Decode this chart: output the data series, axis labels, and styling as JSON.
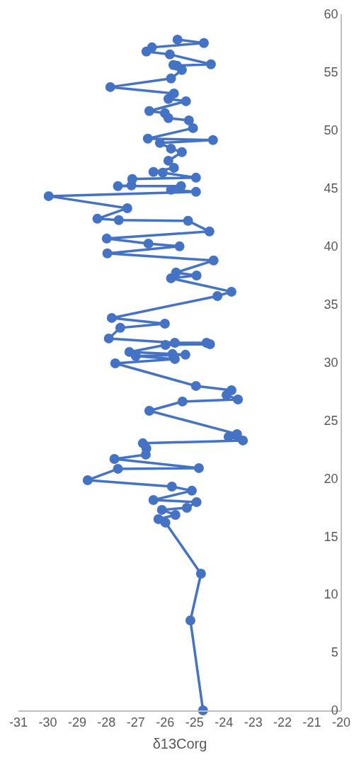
{
  "chart_data": {
    "type": "line",
    "xlabel": "δ13Corg",
    "color": "#4472c4",
    "marker": "circle",
    "line_style": "solid",
    "xlim": [
      -31,
      -20
    ],
    "xticks": [
      -31,
      -30,
      -29,
      -28,
      -27,
      -26,
      -25,
      -24,
      -23,
      -22,
      -21,
      -20
    ],
    "ylim": [
      0,
      60
    ],
    "yticks": [
      0,
      5,
      10,
      15,
      20,
      25,
      30,
      35,
      40,
      45,
      50,
      55,
      60
    ],
    "x": [
      -24.71,
      -25.14,
      -24.78,
      -25.99,
      -26.23,
      -25.65,
      -26.11,
      -25.26,
      -24.93,
      -26.4,
      -25.09,
      -25.77,
      -28.64,
      -27.61,
      -24.85,
      -27.73,
      -26.66,
      -26.64,
      -26.76,
      -23.35,
      -23.84,
      -23.55,
      -26.54,
      -25.41,
      -23.52,
      -23.91,
      -23.74,
      -24.95,
      -27.7,
      -25.67,
      -27.0,
      -25.31,
      -25.75,
      -27.22,
      -25.99,
      -24.47,
      -24.59,
      -25.67,
      -27.92,
      -27.53,
      -26.01,
      -27.82,
      -24.22,
      -23.74,
      -25.8,
      -24.93,
      -25.63,
      -24.35,
      -27.97,
      -25.51,
      -26.57,
      -27.99,
      -24.49,
      -25.22,
      -27.58,
      -28.31,
      -27.29,
      -29.97,
      -24.95,
      -25.8,
      -25.46,
      -27.61,
      -27.15,
      -27.12,
      -24.95,
      -26.08,
      -26.4,
      -25.7,
      -25.89,
      -25.43,
      -25.8,
      -26.18,
      -24.37,
      -26.59,
      -25.05,
      -25.19,
      -25.89,
      -26.01,
      -26.54,
      -25.29,
      -25.89,
      -25.7,
      -27.87,
      -25.8,
      -25.43,
      -25.72,
      -25.6,
      -24.44,
      -25.84,
      -26.64,
      -26.45,
      -24.68,
      -25.58
    ],
    "values": [
      0,
      7.75,
      11.78,
      16.18,
      16.48,
      16.85,
      17.28,
      17.46,
      17.95,
      18.13,
      18.93,
      19.29,
      19.84,
      20.82,
      20.88,
      21.67,
      22.04,
      22.59,
      23.02,
      23.26,
      23.57,
      23.81,
      25.82,
      26.62,
      26.8,
      27.17,
      27.59,
      27.96,
      29.91,
      30.28,
      30.53,
      30.65,
      30.71,
      30.89,
      31.5,
      31.56,
      31.68,
      31.68,
      32.05,
      32.97,
      33.33,
      33.82,
      35.71,
      36.08,
      37.24,
      37.48,
      37.73,
      38.77,
      39.38,
      39.99,
      40.23,
      40.66,
      41.27,
      42.19,
      42.25,
      42.37,
      43.28,
      44.32,
      44.69,
      44.87,
      45.18,
      45.18,
      45.24,
      45.79,
      45.91,
      46.34,
      46.4,
      46.76,
      47.37,
      48.11,
      48.41,
      48.9,
      49.15,
      49.27,
      50.18,
      50.85,
      51.04,
      51.47,
      51.65,
      52.5,
      52.69,
      53.17,
      53.72,
      54.46,
      55.19,
      55.62,
      55.56,
      55.68,
      56.53,
      56.78,
      57.14,
      57.51,
      57.81
    ]
  }
}
